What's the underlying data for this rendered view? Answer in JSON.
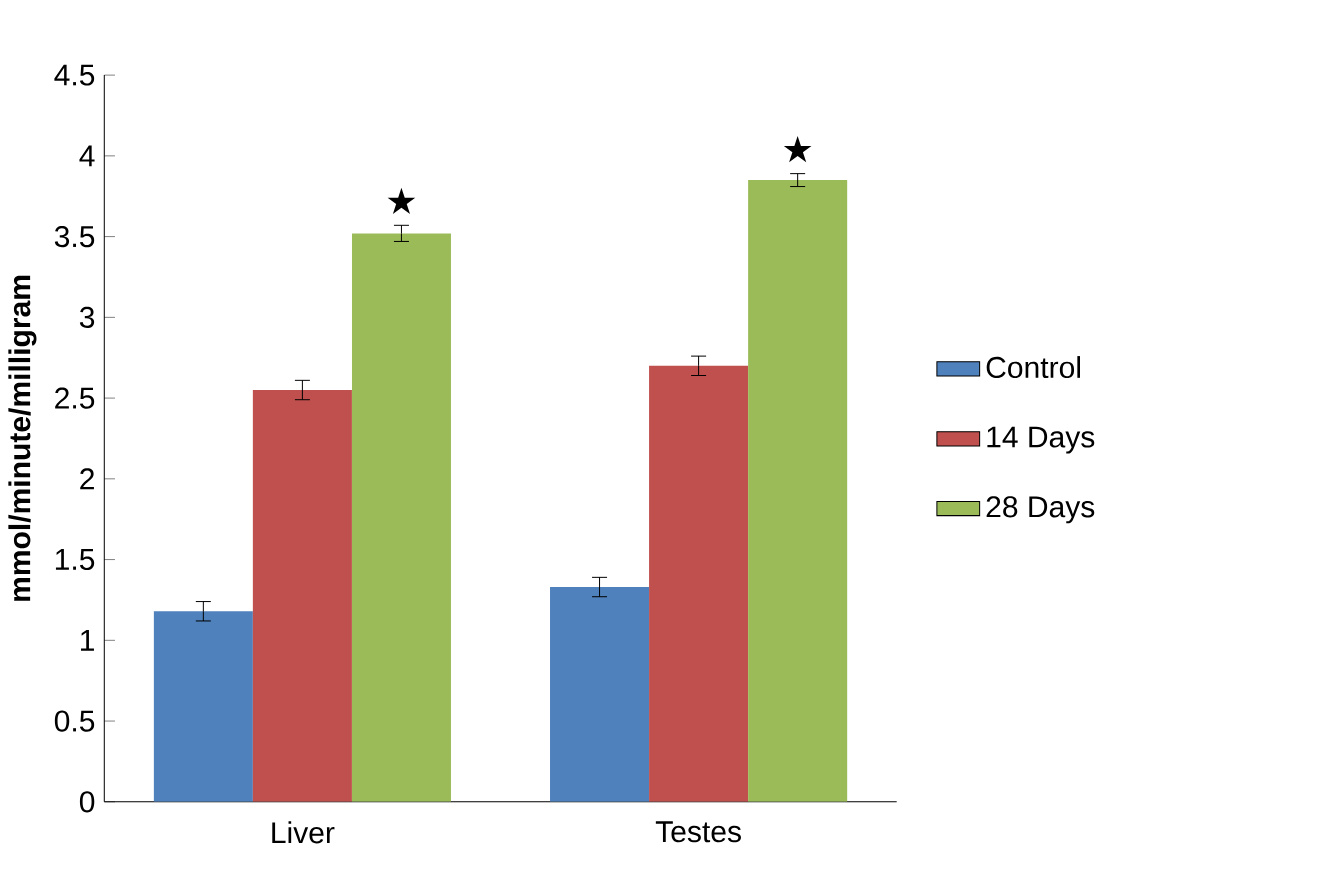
{
  "chart_data": {
    "type": "bar",
    "ylabel": "mmol/minute/milligram",
    "categories": [
      "Liver",
      "Testes"
    ],
    "series": [
      {
        "name": "Control",
        "color": "#4f81bd",
        "values": [
          1.18,
          1.33
        ],
        "errors": [
          0.06,
          0.06
        ]
      },
      {
        "name": "14 Days",
        "color": "#c0504d",
        "values": [
          2.55,
          2.7
        ],
        "errors": [
          0.06,
          0.06
        ]
      },
      {
        "name": "28 Days",
        "color": "#9bbb59",
        "values": [
          3.52,
          3.85
        ],
        "errors": [
          0.05,
          0.04
        ]
      }
    ],
    "ylim": [
      0,
      4.5
    ],
    "yticks": [
      0,
      0.5,
      1,
      1.5,
      2,
      2.5,
      3,
      3.5,
      4,
      4.5
    ],
    "legend": "right",
    "grid": false,
    "annotations": [
      "★",
      "★"
    ]
  }
}
